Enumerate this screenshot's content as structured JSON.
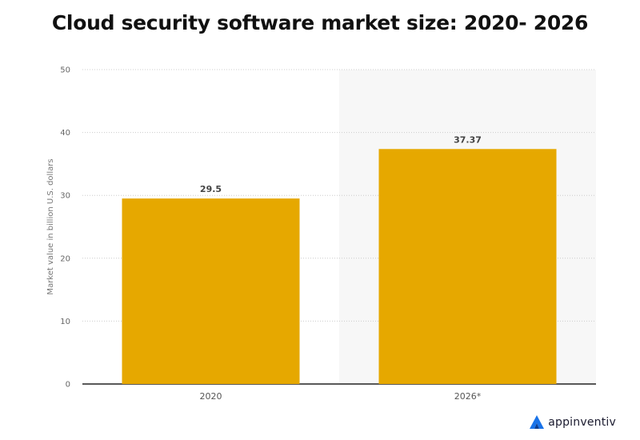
{
  "chart_data": {
    "type": "bar",
    "title": "Cloud security software market size: 2020- 2026",
    "ylabel": "Market value in billion U.S. dollars",
    "xlabel": "",
    "categories": [
      "2020",
      "2026*"
    ],
    "values": [
      29.5,
      37.37
    ],
    "value_labels": [
      "29.5",
      "37.37"
    ],
    "ylim": [
      0,
      50
    ],
    "yticks": [
      0,
      10,
      20,
      30,
      40,
      50
    ],
    "grid": true,
    "forecast_shaded_category": "2026*",
    "colors": {
      "bar": "#e6a800",
      "forecast_background": "#f7f7f7",
      "grid": "#cccccc",
      "axis": "#222222"
    }
  },
  "brand": {
    "logo_text": "appinventiv",
    "logo_icon": "appinventiv-logo-icon"
  }
}
